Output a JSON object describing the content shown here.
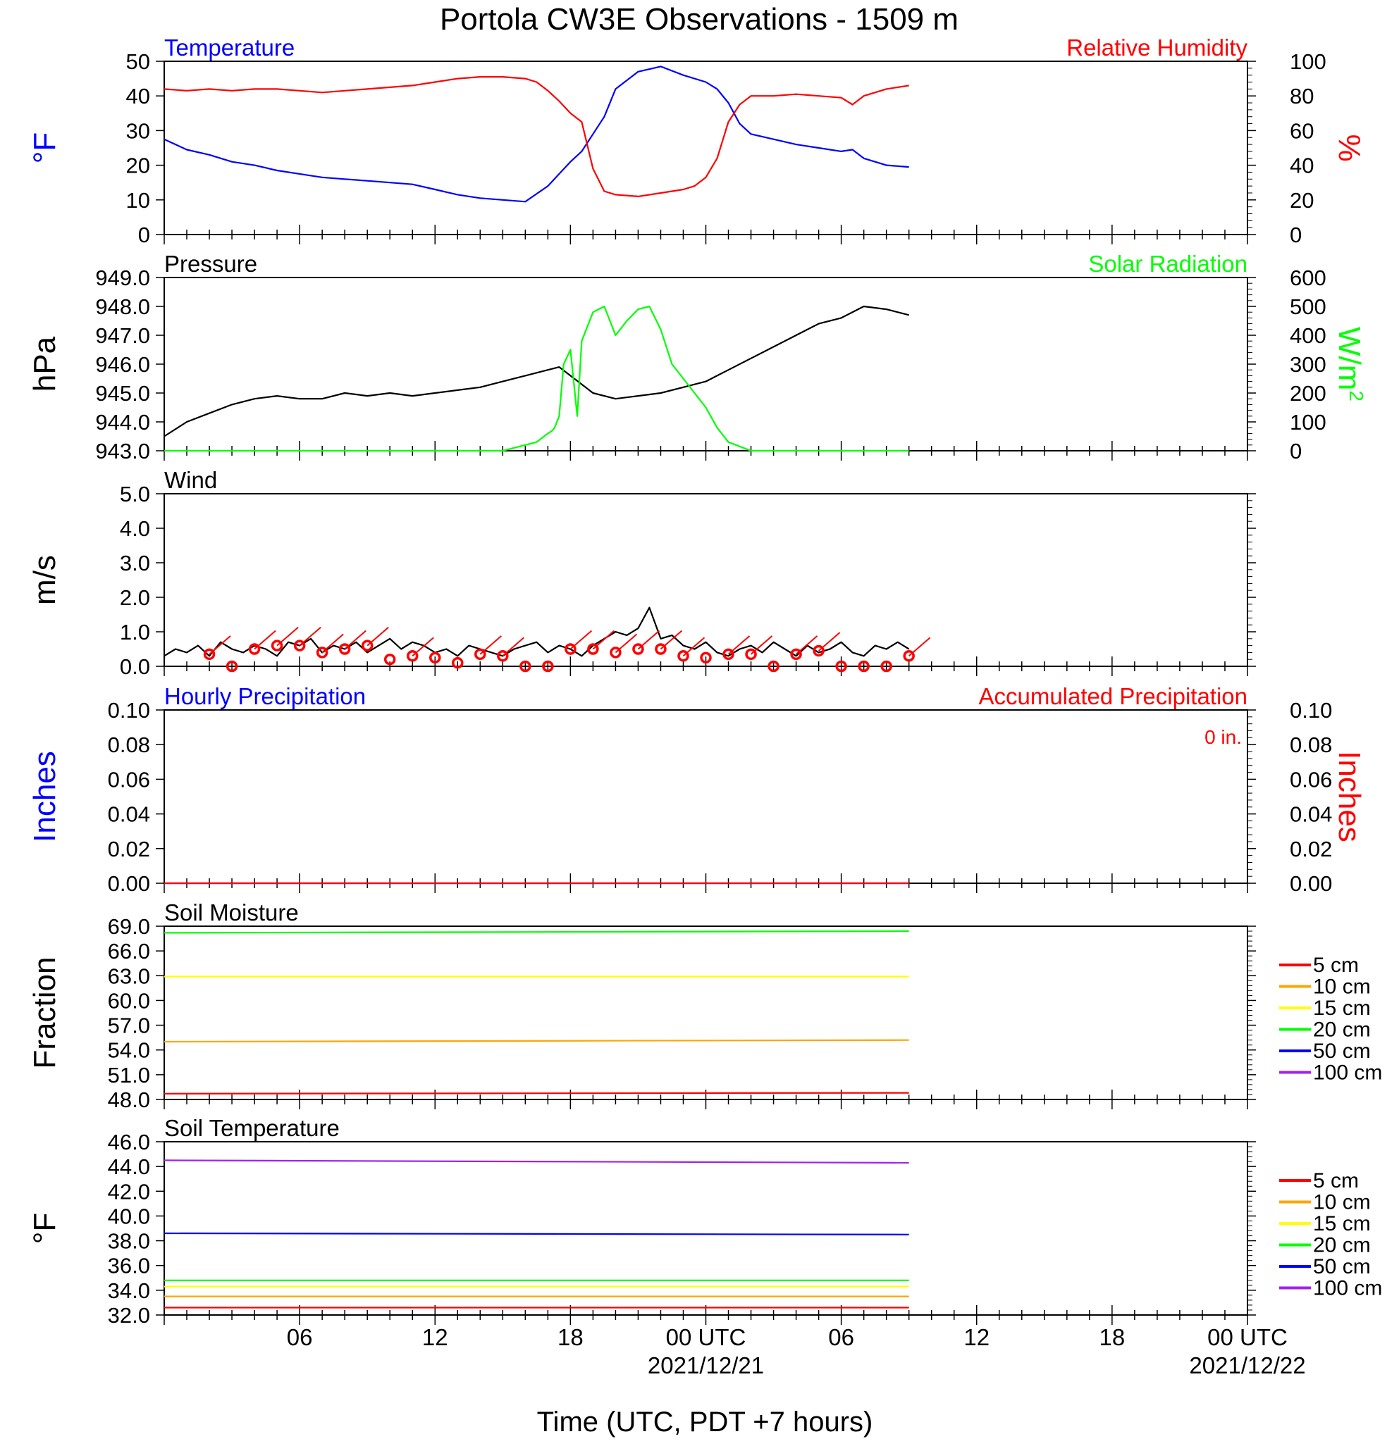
{
  "title": "Portola CW3E Observations - 1509 m",
  "xlabel": "Time (UTC, PDT +7 hours)",
  "time_axis": {
    "range_hours": [
      0,
      48
    ],
    "tick_labels": [
      {
        "hour": 6,
        "label": "06"
      },
      {
        "hour": 12,
        "label": "12"
      },
      {
        "hour": 18,
        "label": "18"
      },
      {
        "hour": 24,
        "label": "00 UTC",
        "date": "2021/12/21"
      },
      {
        "hour": 30,
        "label": "06"
      },
      {
        "hour": 36,
        "label": "12"
      },
      {
        "hour": 42,
        "label": "18"
      },
      {
        "hour": 48,
        "label": "00 UTC",
        "date": "2021/12/22"
      }
    ]
  },
  "colors": {
    "temperature": "#0000ff",
    "humidity": "#ff0000",
    "pressure": "#000000",
    "solar": "#00ff00",
    "wind": "#000000",
    "wind_barb": "#ff0000",
    "hourly_precip": "#0000ff",
    "accum_precip": "#ff0000"
  },
  "chart_data": [
    {
      "id": "temp-rh",
      "type": "line",
      "left_title": "Temperature",
      "right_title": "Relative Humidity",
      "ylabel": "°F",
      "y2label": "%",
      "ylim": [
        0,
        50
      ],
      "y2lim": [
        0,
        100
      ],
      "yticks": [
        "0",
        "10",
        "20",
        "30",
        "40",
        "50"
      ],
      "y2ticks": [
        "0",
        "20",
        "40",
        "60",
        "80",
        "100"
      ],
      "series": [
        {
          "name": "Temperature",
          "axis": "left",
          "color": "#0000ff",
          "x": [
            0,
            1,
            2,
            3,
            4,
            5,
            6,
            7,
            8,
            9,
            10,
            11,
            12,
            13,
            14,
            15,
            16,
            17,
            17.5,
            18,
            18.5,
            19,
            19.5,
            20,
            21,
            22,
            23,
            24,
            24.5,
            25,
            25.5,
            26,
            27,
            28,
            29,
            30,
            30.5,
            31,
            32,
            33
          ],
          "y": [
            27.5,
            24.5,
            23,
            21,
            20,
            18.5,
            17.5,
            16.5,
            16,
            15.5,
            15,
            14.5,
            13,
            11.5,
            10.5,
            10,
            9.5,
            14,
            17.5,
            21,
            24,
            29,
            34,
            42,
            47,
            48.5,
            46,
            44,
            42,
            38,
            32,
            29,
            27.5,
            26,
            25,
            24,
            24.5,
            22,
            20,
            19.5
          ]
        },
        {
          "name": "Relative Humidity",
          "axis": "right",
          "color": "#ff0000",
          "x": [
            0,
            1,
            2,
            3,
            4,
            5,
            6,
            7,
            8,
            9,
            10,
            11,
            12,
            13,
            14,
            15,
            16,
            16.5,
            17,
            17.5,
            18,
            18.5,
            19,
            19.5,
            20,
            21,
            22,
            23,
            23.5,
            24,
            24.5,
            25,
            25.5,
            26,
            27,
            28,
            29,
            30,
            30.5,
            31,
            32,
            33
          ],
          "y": [
            84,
            83,
            84,
            83,
            84,
            84,
            83,
            82,
            83,
            84,
            85,
            86,
            88,
            90,
            91,
            91,
            90,
            88,
            83,
            77,
            70,
            65,
            38,
            25,
            23,
            22,
            24,
            26,
            28,
            33,
            44,
            65,
            75,
            80,
            80,
            81,
            80,
            79,
            75,
            80,
            84,
            86
          ]
        }
      ]
    },
    {
      "id": "pressure-solar",
      "type": "line",
      "left_title": "Pressure",
      "right_title": "Solar Radiation",
      "ylabel": "hPa",
      "y2label": "W/m",
      "y2label_sup": "2",
      "ylim": [
        943,
        949
      ],
      "y2lim": [
        0,
        600
      ],
      "yticks": [
        "943.0",
        "944.0",
        "945.0",
        "946.0",
        "947.0",
        "948.0",
        "949.0"
      ],
      "y2ticks": [
        "0",
        "100",
        "200",
        "300",
        "400",
        "500",
        "600"
      ],
      "series": [
        {
          "name": "Pressure",
          "axis": "left",
          "color": "#000000",
          "x": [
            0,
            1,
            2,
            3,
            4,
            5,
            6,
            7,
            8,
            9,
            10,
            11,
            12,
            13,
            14,
            15,
            16,
            17,
            17.5,
            18,
            19,
            20,
            21,
            22,
            23,
            24,
            25,
            26,
            27,
            28,
            29,
            30,
            31,
            32,
            33
          ],
          "y": [
            943.5,
            944,
            944.3,
            944.6,
            944.8,
            944.9,
            944.8,
            944.8,
            945.0,
            944.9,
            945.0,
            944.9,
            945.0,
            945.1,
            945.2,
            945.4,
            945.6,
            945.8,
            945.9,
            945.6,
            945.0,
            944.8,
            944.9,
            945.0,
            945.2,
            945.4,
            945.8,
            946.2,
            946.6,
            947.0,
            947.4,
            947.6,
            948.0,
            947.9,
            947.7
          ]
        },
        {
          "name": "Solar Radiation",
          "axis": "right",
          "color": "#00ff00",
          "x": [
            0,
            14,
            15,
            16,
            16.5,
            17,
            17.2,
            17.3,
            17.5,
            17.7,
            18,
            18.3,
            18.5,
            19,
            19.5,
            20,
            20.5,
            21,
            21.5,
            22,
            22.5,
            23,
            23.5,
            24,
            24.5,
            25,
            26,
            33
          ],
          "y": [
            0,
            0,
            0,
            20,
            30,
            60,
            70,
            80,
            120,
            300,
            350,
            120,
            380,
            480,
            500,
            400,
            450,
            490,
            500,
            420,
            300,
            250,
            200,
            150,
            80,
            30,
            0,
            0
          ]
        }
      ]
    },
    {
      "id": "wind",
      "type": "line",
      "left_title": "Wind",
      "ylabel": "m/s",
      "ylim": [
        0,
        5
      ],
      "yticks": [
        "0.0",
        "1.0",
        "2.0",
        "3.0",
        "4.0",
        "5.0"
      ],
      "series": [
        {
          "name": "Wind",
          "axis": "left",
          "color": "#000000",
          "x": [
            0,
            0.5,
            1,
            1.5,
            2,
            2.5,
            3,
            3.5,
            4,
            4.5,
            5,
            5.5,
            6,
            6.5,
            7,
            7.5,
            8,
            8.5,
            9,
            9.5,
            10,
            10.5,
            11,
            11.5,
            12,
            12.5,
            13,
            13.5,
            14,
            14.5,
            15,
            15.5,
            16,
            16.5,
            17,
            17.5,
            18,
            18.5,
            19,
            19.5,
            20,
            20.5,
            21,
            21.5,
            22,
            22.5,
            23,
            23.5,
            24,
            24.5,
            25,
            25.5,
            26,
            26.5,
            27,
            27.5,
            28,
            28.5,
            29,
            29.5,
            30,
            30.5,
            31,
            31.5,
            32,
            32.5,
            33
          ],
          "y": [
            0.3,
            0.5,
            0.4,
            0.6,
            0.3,
            0.7,
            0.5,
            0.4,
            0.6,
            0.5,
            0.3,
            0.7,
            0.6,
            0.8,
            0.4,
            0.6,
            0.5,
            0.7,
            0.4,
            0.6,
            0.8,
            0.5,
            0.7,
            0.6,
            0.4,
            0.5,
            0.3,
            0.6,
            0.5,
            0.4,
            0.3,
            0.5,
            0.6,
            0.7,
            0.4,
            0.6,
            0.5,
            0.3,
            0.6,
            0.8,
            1.0,
            0.9,
            1.1,
            1.7,
            0.8,
            0.9,
            0.6,
            0.5,
            0.7,
            0.4,
            0.3,
            0.5,
            0.6,
            0.4,
            0.7,
            0.5,
            0.3,
            0.6,
            0.4,
            0.5,
            0.7,
            0.4,
            0.3,
            0.6,
            0.5,
            0.7,
            0.5
          ]
        }
      ],
      "barb_hours": [
        2,
        3,
        4,
        5,
        6,
        7,
        8,
        9,
        10,
        11,
        12,
        13,
        14,
        15,
        16,
        17,
        18,
        19,
        20,
        21,
        22,
        23,
        24,
        25,
        26,
        27,
        28,
        29,
        30,
        31,
        32,
        33
      ],
      "barb_speeds": [
        0.35,
        0,
        0.5,
        0.6,
        0.6,
        0.4,
        0.5,
        0.6,
        0.2,
        0.3,
        0.25,
        0.1,
        0.35,
        0.3,
        0,
        0,
        0.5,
        0.5,
        0.4,
        0.5,
        0.5,
        0.3,
        0.25,
        0.35,
        0.35,
        0,
        0.35,
        0.45,
        0,
        0,
        0,
        0.3
      ]
    },
    {
      "id": "precip",
      "type": "line",
      "left_title": "Hourly Precipitation",
      "right_title": "Accumulated Precipitation",
      "annotation": "0 in.",
      "ylabel": "Inches",
      "y2label": "Inches",
      "ylim": [
        0,
        0.1
      ],
      "y2lim": [
        0,
        0.1
      ],
      "yticks": [
        "0.00",
        "0.02",
        "0.04",
        "0.06",
        "0.08",
        "0.10"
      ],
      "y2ticks": [
        "0.00",
        "0.02",
        "0.04",
        "0.06",
        "0.08",
        "0.10"
      ],
      "series": [
        {
          "name": "Hourly Precipitation",
          "axis": "left",
          "color": "#0000ff",
          "x": [
            0,
            33
          ],
          "y": [
            0,
            0
          ]
        },
        {
          "name": "Accumulated Precipitation",
          "axis": "right",
          "color": "#ff0000",
          "x": [
            0,
            33
          ],
          "y": [
            0,
            0
          ]
        }
      ]
    },
    {
      "id": "soil-moisture",
      "type": "line",
      "left_title": "Soil Moisture",
      "ylabel": "Fraction",
      "ylim": [
        48,
        69
      ],
      "yticks": [
        "48.0",
        "51.0",
        "54.0",
        "57.0",
        "60.0",
        "63.0",
        "66.0",
        "69.0"
      ],
      "legend": [
        "5 cm",
        "10 cm",
        "15 cm",
        "20 cm",
        "50 cm",
        "100 cm"
      ],
      "legend_colors": [
        "#ff0000",
        "#ffa500",
        "#ffff00",
        "#00ff00",
        "#0000ff",
        "#a020f0"
      ],
      "series": [
        {
          "name": "5 cm",
          "axis": "left",
          "color": "#ff0000",
          "x": [
            0,
            33
          ],
          "y": [
            48.7,
            48.8
          ]
        },
        {
          "name": "10 cm",
          "axis": "left",
          "color": "#ffa500",
          "x": [
            0,
            33
          ],
          "y": [
            55.0,
            55.2
          ]
        },
        {
          "name": "15 cm",
          "axis": "left",
          "color": "#ffff00",
          "x": [
            0,
            33
          ],
          "y": [
            62.9,
            62.9
          ]
        },
        {
          "name": "20 cm",
          "axis": "left",
          "color": "#00ff00",
          "x": [
            0,
            33
          ],
          "y": [
            68.2,
            68.4
          ]
        }
      ]
    },
    {
      "id": "soil-temp",
      "type": "line",
      "left_title": "Soil Temperature",
      "ylabel": "°F",
      "ylim": [
        32,
        46
      ],
      "yticks": [
        "32.0",
        "34.0",
        "36.0",
        "38.0",
        "40.0",
        "42.0",
        "44.0",
        "46.0"
      ],
      "legend": [
        "5 cm",
        "10 cm",
        "15 cm",
        "20 cm",
        "50 cm",
        "100 cm"
      ],
      "legend_colors": [
        "#ff0000",
        "#ffa500",
        "#ffff00",
        "#00ff00",
        "#0000ff",
        "#a020f0"
      ],
      "series": [
        {
          "name": "5 cm",
          "axis": "left",
          "color": "#ff0000",
          "x": [
            0,
            33
          ],
          "y": [
            32.6,
            32.6
          ]
        },
        {
          "name": "10 cm",
          "axis": "left",
          "color": "#ffa500",
          "x": [
            0,
            33
          ],
          "y": [
            33.5,
            33.5
          ]
        },
        {
          "name": "15 cm",
          "axis": "left",
          "color": "#ffff00",
          "x": [
            0,
            33
          ],
          "y": [
            34.3,
            34.3
          ]
        },
        {
          "name": "20 cm",
          "axis": "left",
          "color": "#00ff00",
          "x": [
            0,
            33
          ],
          "y": [
            34.8,
            34.8
          ]
        },
        {
          "name": "50 cm",
          "axis": "left",
          "color": "#0000ff",
          "x": [
            0,
            33
          ],
          "y": [
            38.6,
            38.5
          ]
        },
        {
          "name": "100 cm",
          "axis": "left",
          "color": "#a020f0",
          "x": [
            0,
            33
          ],
          "y": [
            44.5,
            44.3
          ]
        }
      ]
    }
  ]
}
